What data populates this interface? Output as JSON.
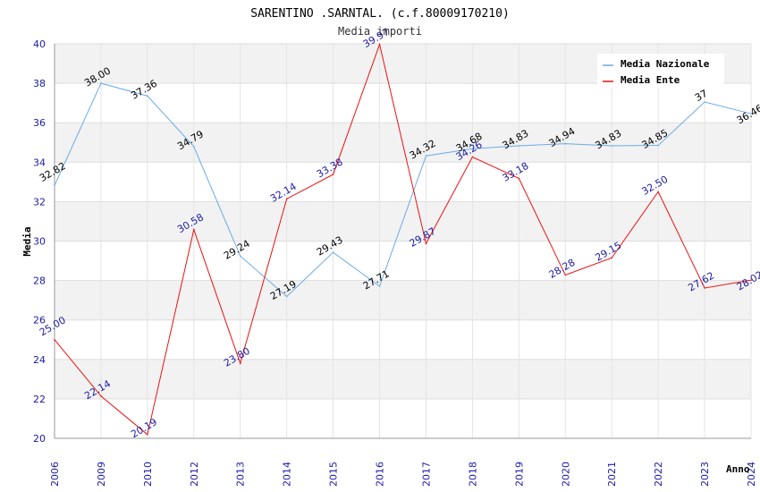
{
  "chart_data": {
    "type": "line",
    "title": "SARENTINO .SARNTAL. (c.f.80009170210)",
    "subtitle": "Media importi",
    "xlabel": "Anno",
    "ylabel": "Media",
    "ylim": [
      20,
      40
    ],
    "yticks": [
      "20",
      "22",
      "24",
      "26",
      "28",
      "30",
      "32",
      "34",
      "36",
      "38",
      "40"
    ],
    "categories": [
      "2006",
      "2009",
      "2010",
      "2012",
      "2013",
      "2014",
      "2015",
      "2016",
      "2017",
      "2018",
      "2019",
      "2020",
      "2021",
      "2022",
      "2023",
      "2024"
    ],
    "legend_position": "top-right",
    "series": [
      {
        "name": "Media Nazionale",
        "color": "#6aaae8",
        "values": [
          32.82,
          38.0,
          37.36,
          34.79,
          29.24,
          27.19,
          29.43,
          27.71,
          34.32,
          34.68,
          34.83,
          34.94,
          34.83,
          34.85,
          37.05,
          36.46
        ],
        "labels": [
          "32.82",
          "38.00",
          "37.36",
          "34.79",
          "29.24",
          "27.19",
          "29.43",
          "27.71",
          "34.32",
          "34.68",
          "34.83",
          "34.94",
          "34.83",
          "34.85",
          "37",
          "36.46"
        ]
      },
      {
        "name": "Media Ente",
        "color": "#ee1111",
        "values": [
          25.0,
          22.14,
          20.19,
          30.58,
          23.8,
          32.14,
          33.38,
          39.97,
          29.87,
          34.26,
          33.18,
          28.28,
          29.15,
          32.5,
          27.62,
          28.02
        ],
        "labels": [
          "25.00",
          "22.14",
          "20.19",
          "30.58",
          "23.80",
          "32.14",
          "33.38",
          "39.97",
          "29.87",
          "34.26",
          "33.18",
          "28.28",
          "29.15",
          "32.50",
          "27.62",
          "28.02"
        ]
      }
    ]
  }
}
